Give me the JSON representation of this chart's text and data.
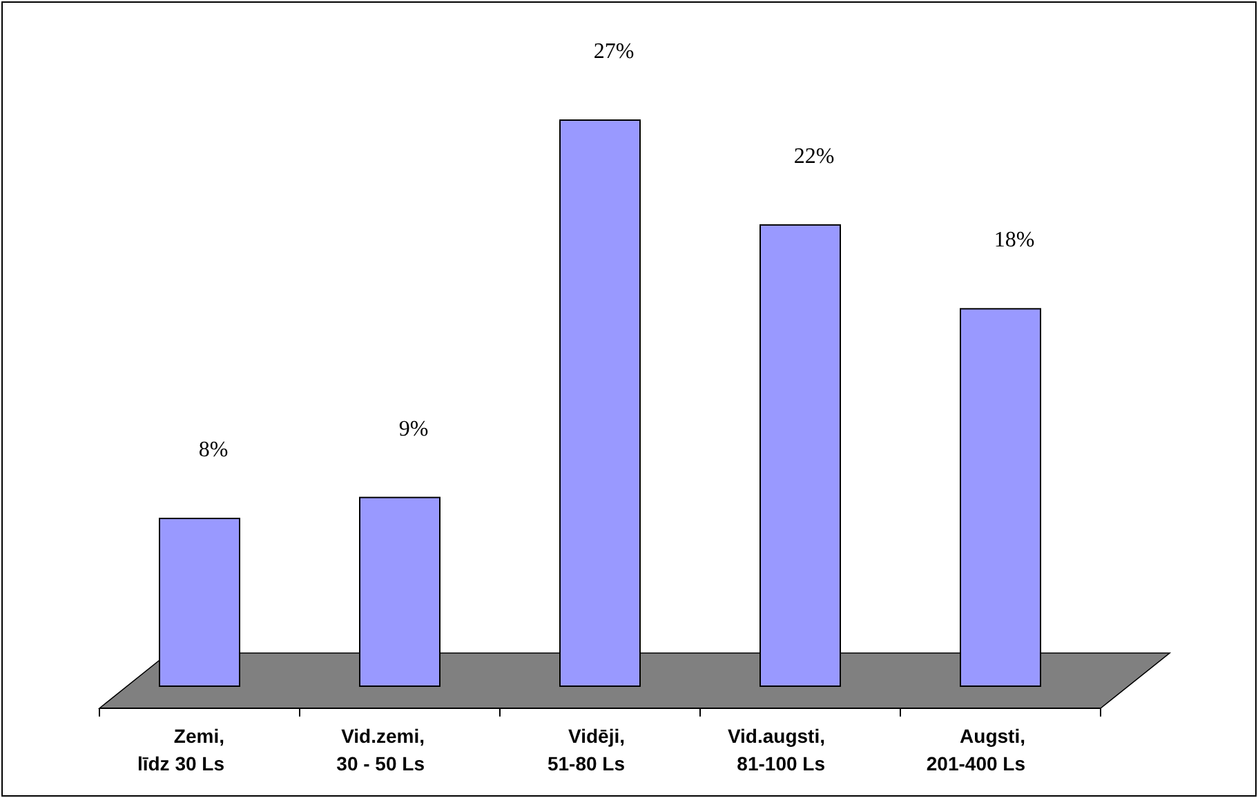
{
  "chart_data": {
    "type": "bar",
    "categories": [
      "Zemi,\nlīdz 30 Ls",
      "Vid.zemi,\n30 - 50 Ls",
      "Vidēji,\n51-80 Ls",
      "Vid.augsti,\n81-100 Ls",
      "Augsti,\n201-400 Ls"
    ],
    "values": [
      8,
      9,
      27,
      22,
      18
    ],
    "value_labels": [
      "8%",
      "9%",
      "27%",
      "22%",
      "18%"
    ],
    "color": "#9999ff"
  }
}
